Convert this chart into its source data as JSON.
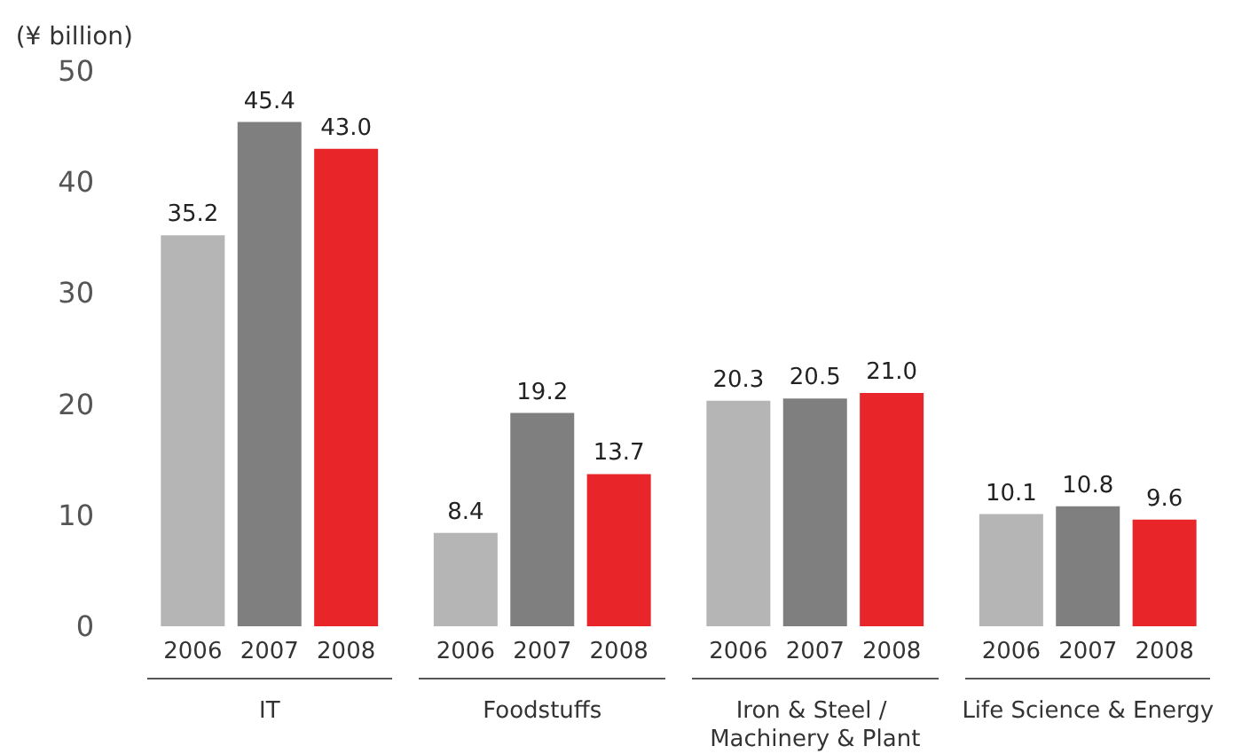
{
  "chart_data": {
    "type": "bar",
    "ylabel": "(¥ billion)",
    "categories": [
      "IT",
      "Foodstuffs",
      "Iron & Steel / Machinery & Plant",
      "Life Science & Energy"
    ],
    "series": [
      {
        "name": "2006",
        "color": "#b5b5b5",
        "values": [
          35.2,
          8.4,
          20.3,
          10.1
        ],
        "value_labels": [
          "35.2",
          "8.4",
          "20.3",
          "10.1"
        ]
      },
      {
        "name": "2007",
        "color": "#7f7f7f",
        "values": [
          45.4,
          19.2,
          20.5,
          10.8
        ],
        "value_labels": [
          "45.4",
          "19.2",
          "20.5",
          "10.8"
        ]
      },
      {
        "name": "2008",
        "color": "#e8262a",
        "values": [
          43.0,
          13.7,
          21.0,
          9.6
        ],
        "value_labels": [
          "43.0",
          "13.7",
          "21.0",
          "9.6"
        ]
      }
    ],
    "ylim": [
      0,
      50
    ],
    "yticks": [
      0,
      10,
      20,
      30,
      40,
      50
    ],
    "grid": false,
    "legend": false
  }
}
